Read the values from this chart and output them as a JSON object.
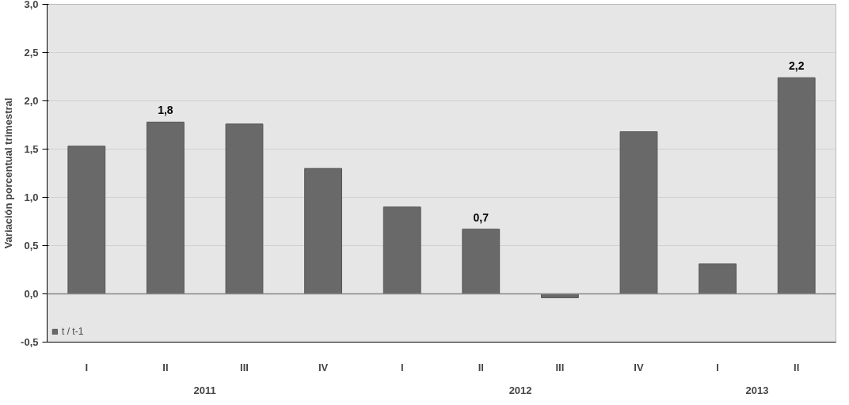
{
  "chart_data": {
    "type": "bar",
    "ylabel": "Variación porcentual trimestral",
    "categories": [
      "I",
      "II",
      "III",
      "IV",
      "I",
      "II",
      "III",
      "IV",
      "I",
      "II"
    ],
    "annotations": [
      {
        "text": "2011"
      },
      {
        "text": "2012"
      },
      {
        "text": "2013"
      }
    ],
    "series": [
      {
        "name": "t / t-1",
        "color": "#696969",
        "values": [
          1.53,
          1.78,
          1.76,
          1.3,
          0.9,
          0.67,
          -0.04,
          1.68,
          0.31,
          2.24
        ],
        "value_labels": [
          null,
          "1,8",
          null,
          null,
          null,
          "0,7",
          null,
          null,
          null,
          "2,2"
        ]
      }
    ],
    "ylim": [
      -0.5,
      3.0
    ],
    "yticks": [
      {
        "value": -0.5,
        "label": "-0,5"
      },
      {
        "value": 0,
        "label": "0,0"
      },
      {
        "value": 0.5,
        "label": "0,5"
      },
      {
        "value": 1.0,
        "label": "1,0"
      },
      {
        "value": 1.5,
        "label": "1,5"
      },
      {
        "value": 2.0,
        "label": "2,0"
      },
      {
        "value": 2.5,
        "label": "2,5"
      },
      {
        "value": 3.0,
        "label": "3,0"
      }
    ],
    "grid": "y",
    "legend": "bottom left"
  }
}
